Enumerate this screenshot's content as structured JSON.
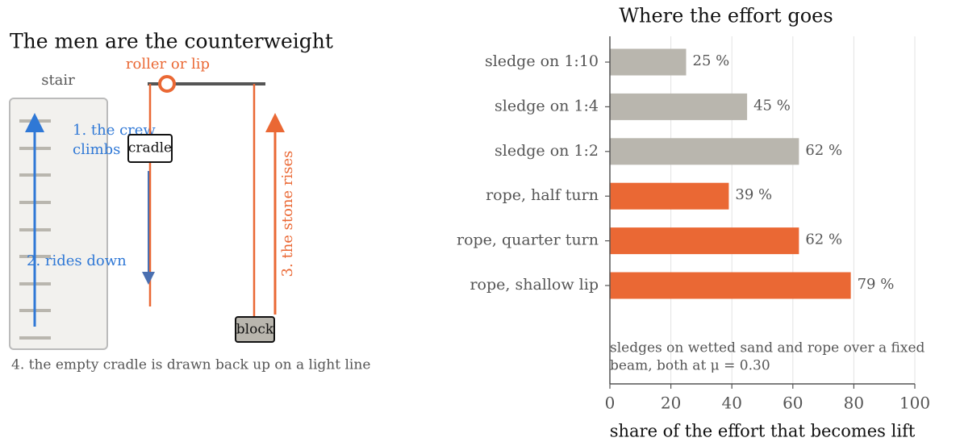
{
  "diagram": {
    "title": "The men are the counterweight",
    "stair_label": "stair",
    "roller_label": "roller or lip",
    "crew_label": [
      "1. the crew",
      "climbs"
    ],
    "rides_label": "2. rides down",
    "cradle_label": "cradle",
    "block_label": "block",
    "stone_label": "3. the stone rises",
    "caption": "4. the empty cradle is drawn back up on a light line"
  },
  "chart_data": {
    "type": "barh",
    "title": "Where the effort goes",
    "xlabel": "share of the effort that becomes lift",
    "categories": [
      "sledge on 1:10",
      "sledge on 1:4",
      "sledge on 1:2",
      "rope, half turn",
      "rope, quarter turn",
      "rope, shallow lip"
    ],
    "values": [
      25,
      45,
      62,
      39,
      62,
      79
    ],
    "value_labels": [
      "25 %",
      "45 %",
      "62 %",
      "39 %",
      "62 %",
      "79 %"
    ],
    "colors": [
      "#b9b6ae",
      "#b9b6ae",
      "#b9b6ae",
      "#ea6834",
      "#ea6834",
      "#ea6834"
    ],
    "xlim": [
      0,
      100
    ],
    "xticks": [
      0,
      20,
      40,
      60,
      80,
      100
    ],
    "grid": true,
    "annotation": [
      "sledges on wetted sand and rope over a fixed",
      "beam, both at μ = 0.30"
    ]
  }
}
